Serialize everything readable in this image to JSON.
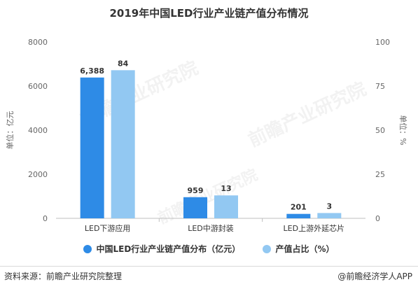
{
  "chart_data": {
    "type": "bar",
    "title": "2019年中国LED行业产业链产值分布情况",
    "categories": [
      "LED下游应用",
      "LED中游封装",
      "LED上游外延芯片"
    ],
    "series": [
      {
        "name": "中国LED行业产业链产值分布（亿元）",
        "values": [
          6388,
          959,
          201
        ],
        "labels": [
          "6,388",
          "959",
          "201"
        ],
        "axis": "left",
        "color": "#2e8be6"
      },
      {
        "name": "产值占比（%）",
        "values": [
          84,
          13,
          3
        ],
        "labels": [
          "84",
          "13",
          "3"
        ],
        "axis": "right",
        "color": "#92c8f2"
      }
    ],
    "y_left": {
      "label": "单位：亿元",
      "min": 0,
      "max": 8000,
      "ticks": [
        "0",
        "2000",
        "4000",
        "6000",
        "8000"
      ]
    },
    "y_right": {
      "label": "单位：%",
      "min": 0,
      "max": 100,
      "ticks": [
        "0",
        "25",
        "50",
        "75",
        "100"
      ]
    },
    "grid": false,
    "legend_position": "bottom"
  },
  "footer": {
    "source": "资料来源：前瞻产业研究院整理",
    "brand": "@前瞻经济学人APP"
  }
}
